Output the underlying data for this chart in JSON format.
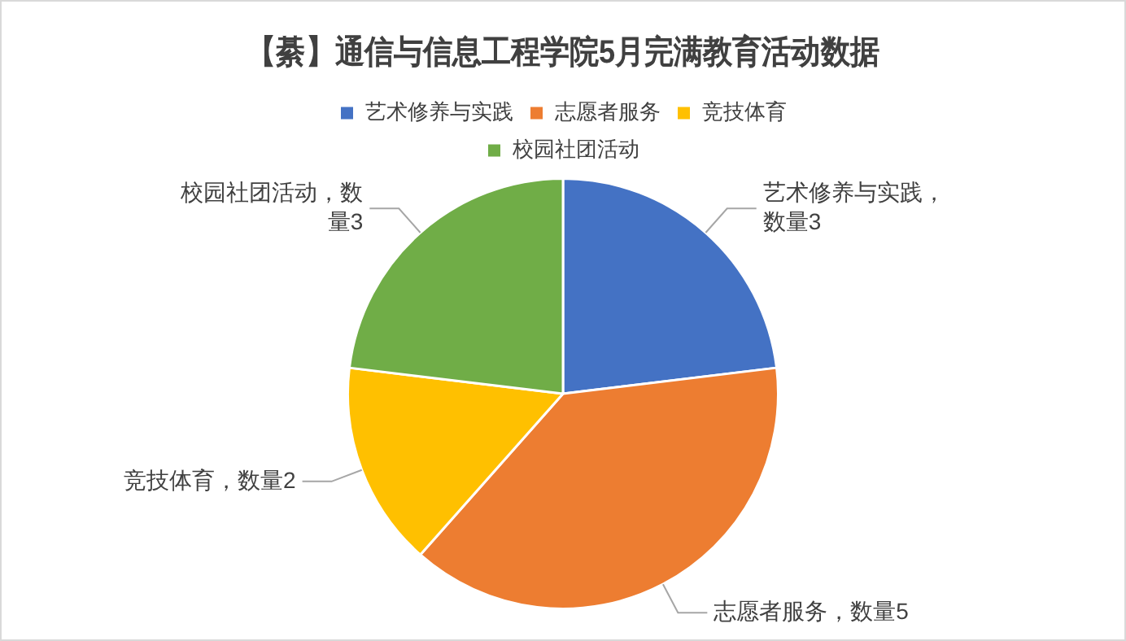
{
  "chart_data": {
    "type": "pie",
    "title": "【綦】通信与信息工程学院5月完满教育活动数据",
    "categories": [
      "艺术修养与实践",
      "志愿者服务",
      "竞技体育",
      "校园社团活动"
    ],
    "values": [
      3,
      5,
      2,
      3
    ],
    "colors": [
      "#4472c4",
      "#ed7d31",
      "#ffc000",
      "#70ad47"
    ],
    "value_labels": [
      "艺术修养与实践，数量3",
      "志愿者服务，数量5",
      "竞技体育，数量2",
      "校园社团活动，数量3"
    ],
    "legend": "top"
  }
}
